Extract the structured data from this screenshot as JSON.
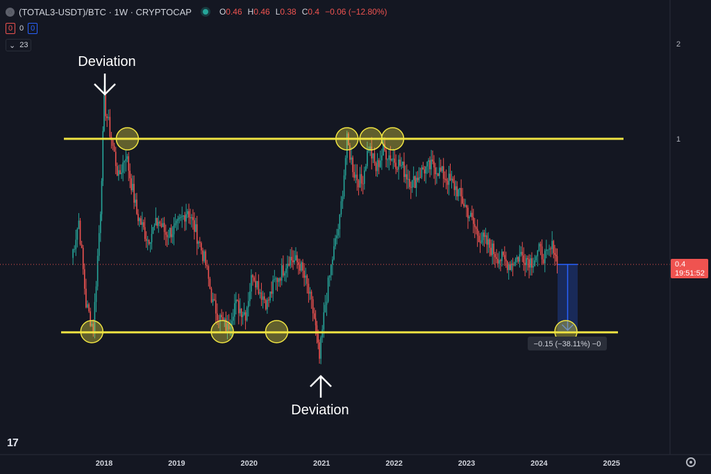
{
  "header": {
    "symbol": "(TOTAL3-USDT)/BTC · 1W · CRYPTOCAP",
    "ohlc": [
      {
        "k": "O",
        "v": "0.46"
      },
      {
        "k": "H",
        "v": "0.46"
      },
      {
        "k": "L",
        "v": "0.38"
      },
      {
        "k": "C",
        "v": "0.4"
      }
    ],
    "change": "−0.06 (−12.80%)"
  },
  "indicator_row": {
    "a": "0",
    "b": "0",
    "c": "0"
  },
  "collapse_count": "23",
  "price_label": {
    "value": "0.4",
    "countdown": "19:51:52"
  },
  "measure_label": "−0.15 (−38.11%) −0",
  "annotations": {
    "top": "Deviation",
    "bottom": "Deviation"
  },
  "colors": {
    "background": "#141722",
    "up": "#26a69a",
    "down": "#ef5350",
    "support_resistance": "#f0e442",
    "measure": "#2962ff"
  },
  "chart_data": {
    "type": "candlestick",
    "title": "(TOTAL3-USDT)/BTC",
    "timeframe": "1W",
    "y_scale": "log",
    "y_ticks": [
      1,
      2
    ],
    "x_ticks": [
      "2018",
      "2019",
      "2020",
      "2021",
      "2022",
      "2023",
      "2024",
      "2025"
    ],
    "resistance_level": 1.0,
    "support_level": 0.245,
    "current_price": 0.4,
    "measure_target": 0.245,
    "series": [
      {
        "x": [
          2017.55,
          2017.65,
          2017.75,
          2017.85,
          2017.95,
          2018.0,
          2018.1,
          2018.2,
          2018.3,
          2018.45,
          2018.6,
          2018.75,
          2018.85,
          2019.0,
          2019.15,
          2019.3,
          2019.4,
          2019.5,
          2019.6,
          2019.7,
          2019.8,
          2019.95,
          2020.05,
          2020.15,
          2020.25,
          2020.35,
          2020.45,
          2020.55,
          2020.7,
          2020.8,
          2020.9,
          2020.97,
          2021.05,
          2021.15,
          2021.25,
          2021.35,
          2021.45,
          2021.55,
          2021.65,
          2021.75,
          2021.85,
          2021.95,
          2022.1,
          2022.25,
          2022.4,
          2022.55,
          2022.7,
          2022.85,
          2023.0,
          2023.15,
          2023.3,
          2023.45,
          2023.6,
          2023.75,
          2023.9,
          2024.0,
          2024.1,
          2024.2,
          2024.25
        ],
        "y": [
          0.42,
          0.55,
          0.3,
          0.25,
          0.6,
          1.3,
          1.0,
          0.75,
          0.9,
          0.58,
          0.48,
          0.55,
          0.5,
          0.52,
          0.6,
          0.48,
          0.4,
          0.3,
          0.27,
          0.25,
          0.3,
          0.28,
          0.38,
          0.33,
          0.3,
          0.35,
          0.38,
          0.42,
          0.4,
          0.34,
          0.27,
          0.2,
          0.3,
          0.42,
          0.55,
          0.98,
          0.78,
          0.72,
          0.95,
          0.8,
          0.92,
          0.88,
          0.82,
          0.72,
          0.8,
          0.82,
          0.76,
          0.7,
          0.6,
          0.5,
          0.46,
          0.42,
          0.4,
          0.43,
          0.41,
          0.44,
          0.42,
          0.46,
          0.4
        ]
      }
    ]
  }
}
